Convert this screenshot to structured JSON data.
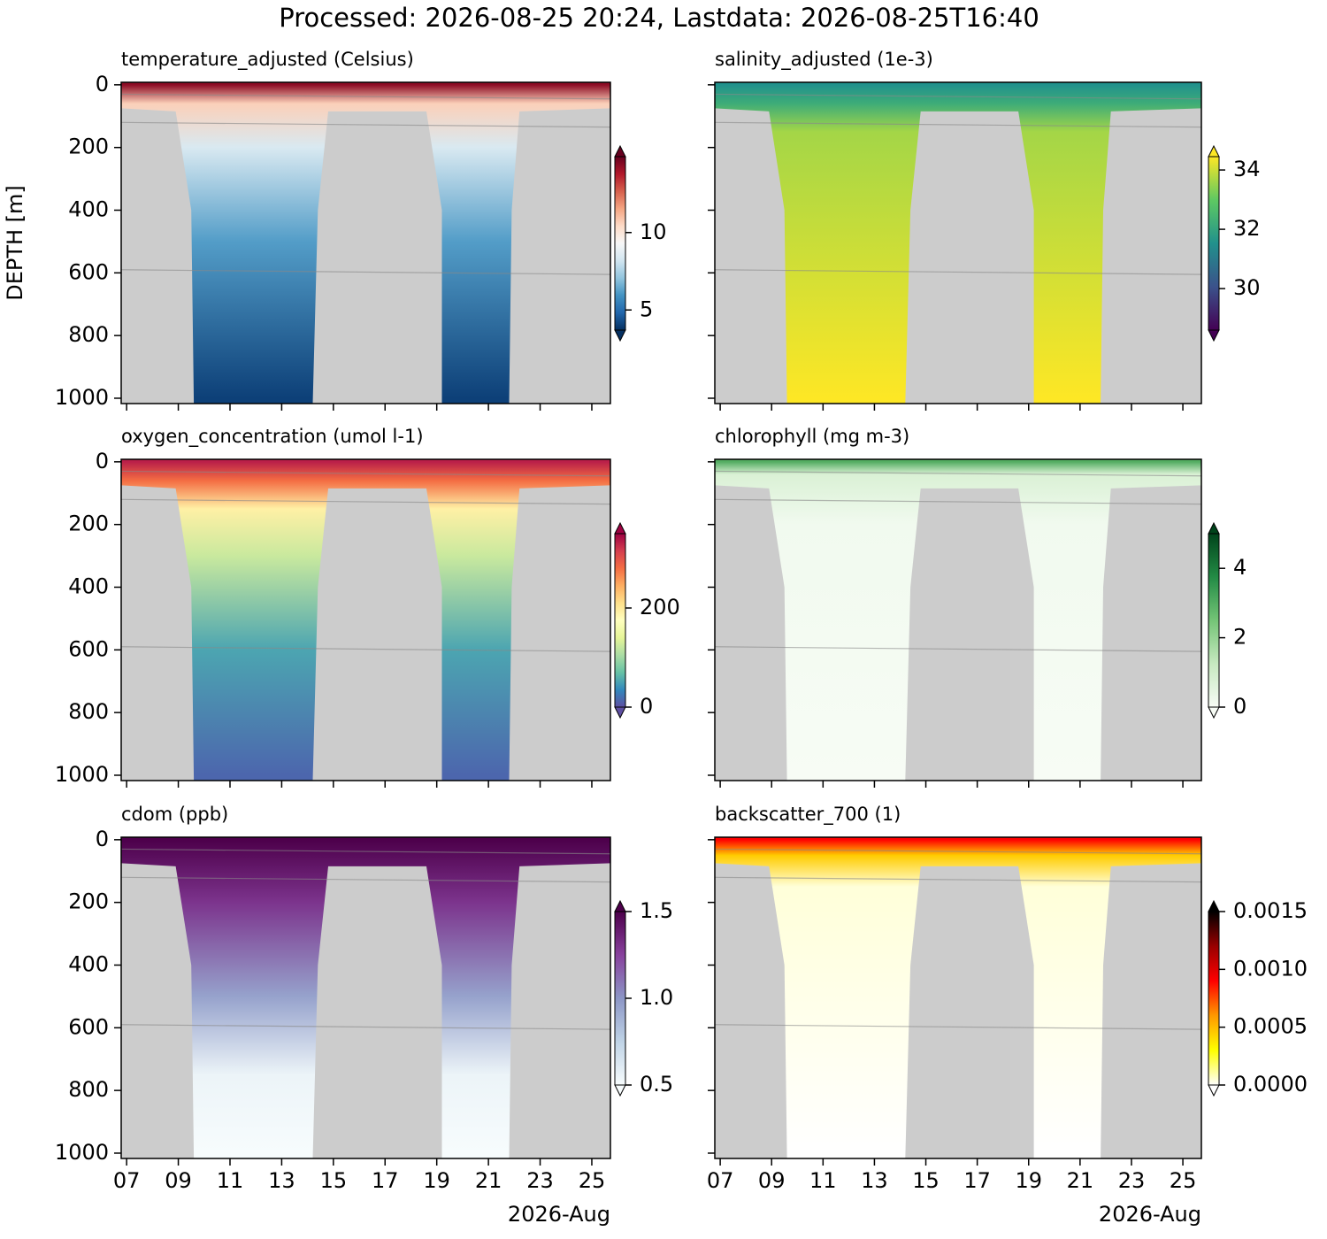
{
  "title": "Processed: 2026-08-25 20:24, Lastdata: 2026-08-25T16:40",
  "chart_data": [
    {
      "type": "heatmap",
      "title": "temperature_adjusted (Celsius)",
      "ylabel": "DEPTH [m]",
      "xlim": [
        6.79,
        25.72
      ],
      "ylim": [
        1017,
        -8
      ],
      "yticks": [
        0,
        200,
        400,
        600,
        800,
        1000
      ],
      "colors": [
        "#053061",
        "#2166ac",
        "#4393c3",
        "#92c5de",
        "#d1e5f0",
        "#f7f7f7",
        "#fddbc7",
        "#f4a582",
        "#d6604d",
        "#b2182b",
        "#67001f"
      ],
      "clim": [
        3.7,
        14.9
      ],
      "cticks": [
        5,
        10
      ]
    },
    {
      "type": "heatmap",
      "title": "salinity_adjusted (1e-3)",
      "xlim": [
        6.79,
        25.72
      ],
      "ylim": [
        1017,
        -8
      ],
      "colors": [
        "#440154",
        "#3b528b",
        "#21918c",
        "#5ec962",
        "#fde725"
      ],
      "clim": [
        28.6,
        34.45
      ],
      "cticks": [
        30,
        32,
        34
      ]
    },
    {
      "type": "heatmap",
      "title": "oxygen_concentration (umol l-1)",
      "xlim": [
        6.79,
        25.72
      ],
      "ylim": [
        1017,
        -8
      ],
      "yticks": [
        0,
        200,
        400,
        600,
        800,
        1000
      ],
      "colors": [
        "#5e4fa2",
        "#3288bd",
        "#66c2a5",
        "#abdda4",
        "#e6f598",
        "#ffffbf",
        "#fee08b",
        "#fdae61",
        "#f46d43",
        "#d53e4f",
        "#9e0142"
      ],
      "clim": [
        0,
        350
      ],
      "cticks": [
        0,
        200
      ]
    },
    {
      "type": "heatmap",
      "title": "chlorophyll (mg m-3)",
      "xlim": [
        6.79,
        25.72
      ],
      "ylim": [
        1017,
        -8
      ],
      "colors": [
        "#f7fcf5",
        "#c7e9c0",
        "#74c476",
        "#238b45",
        "#00441b"
      ],
      "clim": [
        0,
        5
      ],
      "cticks": [
        0,
        2,
        4
      ]
    },
    {
      "type": "heatmap",
      "title": "cdom (ppb)",
      "xlabel": "2026-Aug",
      "xlim": [
        6.79,
        25.72
      ],
      "ylim": [
        1017,
        -8
      ],
      "yticks": [
        0,
        200,
        400,
        600,
        800,
        1000
      ],
      "xticks": [
        {
          "value": 7,
          "label": "07"
        },
        {
          "value": 9,
          "label": "09"
        },
        11,
        13,
        15,
        17,
        19,
        21,
        23,
        25
      ],
      "colors": [
        "#f7fcfd",
        "#bfd3e6",
        "#8c96c6",
        "#88419d",
        "#4d004b"
      ],
      "clim": [
        0.5,
        1.5
      ],
      "cticks": [
        0.5,
        {
          "value": 1,
          "label": "1.0"
        },
        1.5
      ]
    },
    {
      "type": "heatmap",
      "title": "backscatter_700 (1)",
      "xlabel": "2026-Aug",
      "xlim": [
        6.79,
        25.72
      ],
      "ylim": [
        1017,
        -8
      ],
      "xticks": [
        {
          "value": 7,
          "label": "07"
        },
        {
          "value": 9,
          "label": "09"
        },
        11,
        13,
        15,
        17,
        19,
        21,
        23,
        25
      ],
      "colors": [
        "#ffffff",
        "#ffff00",
        "#ff9900",
        "#ff0000",
        "#990000",
        "#000000"
      ],
      "clim": [
        0,
        0.0015
      ],
      "cticks": [
        {
          "value": 0,
          "label": "0.0000"
        },
        {
          "value": 0.0005,
          "label": "0.0005"
        },
        {
          "value": 0.001,
          "label": "0.0010"
        },
        {
          "value": 0.0015,
          "label": "0.0015"
        }
      ]
    }
  ]
}
